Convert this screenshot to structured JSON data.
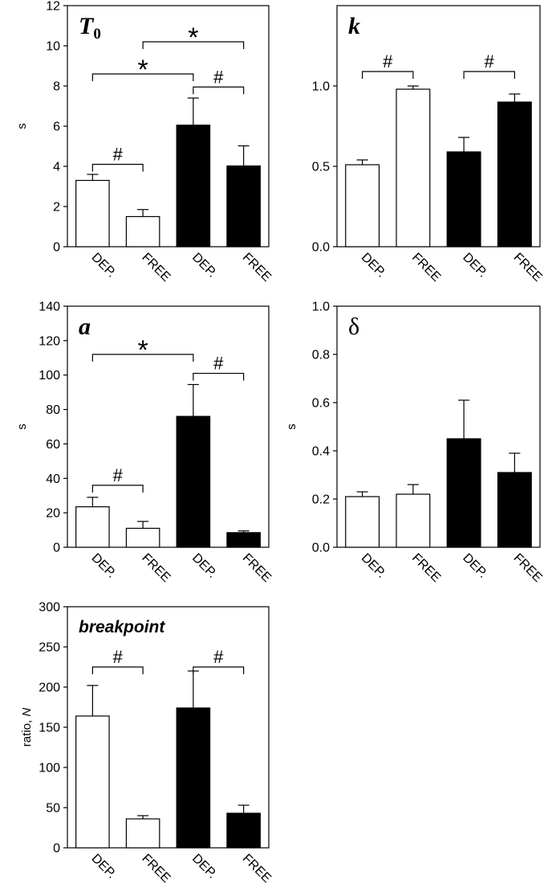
{
  "chart_data": [
    {
      "type": "bar",
      "title": "T",
      "title_sub": "0",
      "ylabel": "s",
      "ylim": [
        0,
        12
      ],
      "yticks": [
        "0",
        "2",
        "4",
        "6",
        "8",
        "10",
        "12"
      ],
      "categories": [
        "DEP.",
        "FREE",
        "DEP.",
        "FREE"
      ],
      "values": [
        3.3,
        1.5,
        6.05,
        4.02
      ],
      "errors": [
        0.3,
        0.35,
        1.35,
        1.0
      ],
      "fills": [
        "#ffffff",
        "#ffffff",
        "#000000",
        "#000000"
      ],
      "annotations": [
        {
          "from": 0,
          "to": 1,
          "y": 4.1,
          "label": "#"
        },
        {
          "from": 0,
          "to": 2,
          "y": 8.6,
          "label": "*"
        },
        {
          "from": 1,
          "to": 3,
          "y": 10.2,
          "label": "*"
        },
        {
          "from": 2,
          "to": 3,
          "y": 7.95,
          "label": "#"
        }
      ]
    },
    {
      "type": "bar",
      "title": "k",
      "title_sub": "",
      "ylabel": "",
      "ylim": [
        0,
        1.5
      ],
      "yticks": [
        "0.0",
        "0.5",
        "1.0"
      ],
      "ytick_values": [
        0,
        0.5,
        1.0
      ],
      "categories": [
        "DEP.",
        "FREE",
        "DEP.",
        "FREE"
      ],
      "values": [
        0.51,
        0.98,
        0.59,
        0.9
      ],
      "errors": [
        0.03,
        0.02,
        0.09,
        0.05
      ],
      "fills": [
        "#ffffff",
        "#ffffff",
        "#000000",
        "#000000"
      ],
      "annotations": [
        {
          "from": 0,
          "to": 1,
          "y": 1.09,
          "label": "#"
        },
        {
          "from": 2,
          "to": 3,
          "y": 1.09,
          "label": "#"
        }
      ]
    },
    {
      "type": "bar",
      "title": "a",
      "title_sub": "",
      "ylabel": "s",
      "ylim": [
        0,
        140
      ],
      "yticks": [
        "0",
        "20",
        "40",
        "60",
        "80",
        "100",
        "120",
        "140"
      ],
      "categories": [
        "DEP.",
        "FREE",
        "DEP.",
        "FREE"
      ],
      "values": [
        23.5,
        11,
        76,
        8.5
      ],
      "errors": [
        5.5,
        4,
        18.5,
        1
      ],
      "fills": [
        "#ffffff",
        "#ffffff",
        "#000000",
        "#000000"
      ],
      "annotations": [
        {
          "from": 0,
          "to": 1,
          "y": 36,
          "label": "#"
        },
        {
          "from": 0,
          "to": 2,
          "y": 112,
          "label": "*"
        },
        {
          "from": 2,
          "to": 3,
          "y": 101,
          "label": "#"
        }
      ]
    },
    {
      "type": "bar",
      "title": "δ",
      "title_sub": "",
      "ylabel": "s",
      "ylim": [
        0,
        1.0
      ],
      "yticks": [
        "0.0",
        "0.2",
        "0.4",
        "0.6",
        "0.8",
        "1.0"
      ],
      "categories": [
        "DEP.",
        "FREE",
        "DEP.",
        "FREE"
      ],
      "values": [
        0.21,
        0.22,
        0.45,
        0.31
      ],
      "errors": [
        0.02,
        0.04,
        0.16,
        0.08
      ],
      "fills": [
        "#ffffff",
        "#ffffff",
        "#000000",
        "#000000"
      ],
      "annotations": []
    },
    {
      "type": "bar",
      "title": "breakpoint",
      "title_sub": "",
      "ylabel": "ratio, N",
      "ylabel_plain": "ratio, ",
      "ylabel_italic": "N",
      "ylim": [
        0,
        300
      ],
      "yticks": [
        "0",
        "50",
        "100",
        "150",
        "200",
        "250",
        "300"
      ],
      "categories": [
        "DEP.",
        "FREE",
        "DEP.",
        "FREE"
      ],
      "values": [
        164,
        36,
        174,
        43
      ],
      "errors": [
        38,
        4,
        46,
        10
      ],
      "fills": [
        "#ffffff",
        "#ffffff",
        "#000000",
        "#000000"
      ],
      "annotations": [
        {
          "from": 0,
          "to": 1,
          "y": 225,
          "label": "#"
        },
        {
          "from": 2,
          "to": 3,
          "y": 225,
          "label": "#"
        }
      ]
    }
  ]
}
